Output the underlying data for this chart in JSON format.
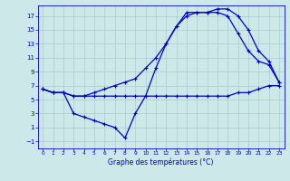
{
  "title": "Graphe des températures (°C)",
  "bg_color": "#cce8e8",
  "grid_color": "#aacccc",
  "line_color": "#0000cc",
  "line_width": 0.9,
  "marker": "+",
  "marker_size": 3,
  "marker_lw": 0.8,
  "xlim": [
    -0.5,
    23.5
  ],
  "ylim": [
    -2,
    18.5
  ],
  "yticks": [
    -1,
    1,
    3,
    5,
    7,
    9,
    11,
    13,
    15,
    17
  ],
  "xticks": [
    0,
    1,
    2,
    3,
    4,
    5,
    6,
    7,
    8,
    9,
    10,
    11,
    12,
    13,
    14,
    15,
    16,
    17,
    18,
    19,
    20,
    21,
    22,
    23
  ],
  "curve1_x": [
    0,
    1,
    2,
    3,
    4,
    5,
    6,
    7,
    8,
    9,
    10,
    11,
    12,
    13,
    14,
    15,
    16,
    17,
    18,
    19,
    20,
    21,
    22,
    23
  ],
  "curve1_y": [
    6.5,
    6.0,
    6.0,
    5.5,
    5.5,
    5.5,
    5.5,
    5.5,
    5.5,
    5.5,
    5.5,
    5.5,
    5.5,
    5.5,
    5.5,
    5.5,
    5.5,
    5.5,
    5.5,
    6.0,
    6.0,
    6.5,
    7.0,
    7.0
  ],
  "curve2_x": [
    0,
    1,
    2,
    3,
    4,
    5,
    6,
    7,
    8,
    9,
    10,
    11,
    12,
    13,
    14,
    15,
    16,
    17,
    18,
    19,
    20,
    21,
    22,
    23
  ],
  "curve2_y": [
    6.5,
    6.0,
    6.0,
    3.0,
    2.5,
    2.0,
    1.5,
    1.0,
    -0.5,
    3.0,
    5.5,
    9.5,
    13.0,
    15.5,
    17.0,
    17.5,
    17.5,
    18.0,
    18.0,
    17.0,
    15.0,
    12.0,
    10.5,
    7.5
  ],
  "curve3_x": [
    0,
    1,
    2,
    3,
    4,
    5,
    6,
    7,
    8,
    9,
    10,
    11,
    12,
    13,
    14,
    15,
    16,
    17,
    18,
    19,
    20,
    21,
    22,
    23
  ],
  "curve3_y": [
    6.5,
    6.0,
    6.0,
    5.5,
    5.5,
    6.0,
    6.5,
    7.0,
    7.5,
    8.0,
    9.5,
    11.0,
    13.0,
    15.5,
    17.5,
    17.5,
    17.5,
    17.5,
    17.0,
    14.5,
    12.0,
    10.5,
    10.0,
    7.5
  ],
  "xlabel_fontsize": 5.5,
  "tick_fontsize_x": 4.2,
  "tick_fontsize_y": 5.0
}
